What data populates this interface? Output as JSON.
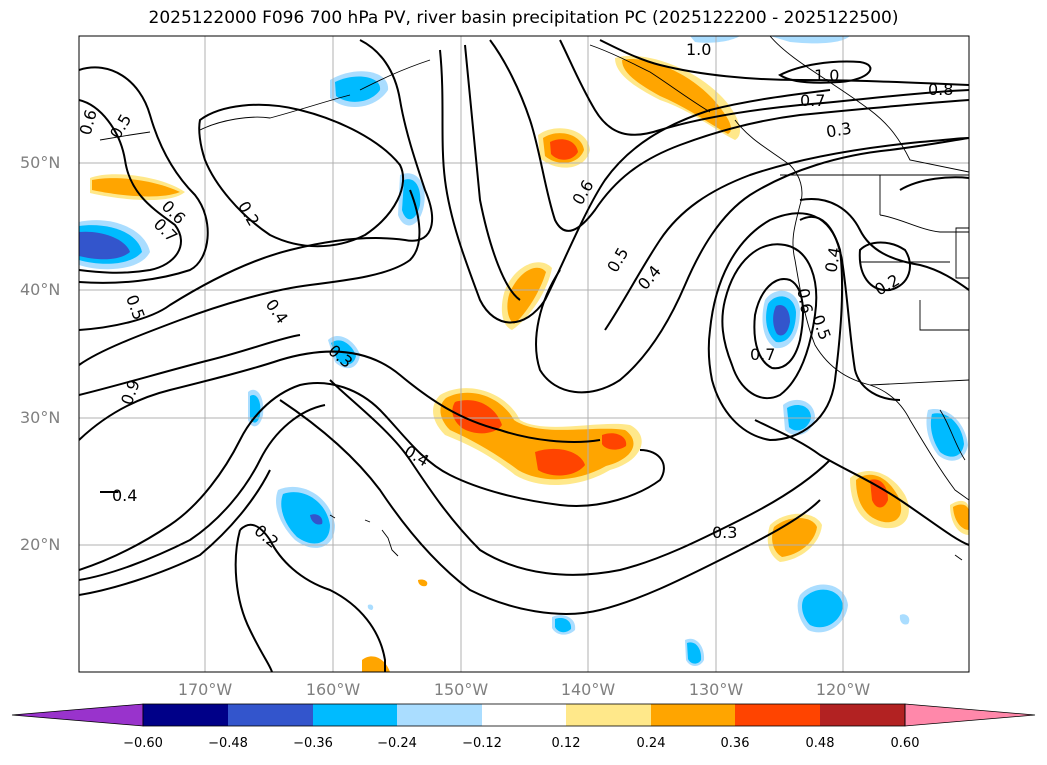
{
  "title": "2025122000 F096 700 hPa PV, river basin precipitation PC (2025122200 - 2025122500)",
  "map": {
    "lat_labels": [
      "50°N",
      "40°N",
      "30°N",
      "20°N"
    ],
    "lon_labels": [
      "170°W",
      "160°W",
      "150°W",
      "140°W",
      "130°W",
      "120°W"
    ],
    "contour_labels": [
      "0.6",
      "0.5",
      "0.6",
      "0.7",
      "0.2",
      "0.4",
      "0.5",
      "0.9",
      "0.3",
      "0.4",
      "0.4",
      "0.2",
      "0.6",
      "0.5",
      "0.4",
      "0.3",
      "1.0",
      "1.0",
      "0.8",
      "0.7",
      "0.3",
      "0.4",
      "0.2",
      "0.6",
      "0.5",
      "0.7"
    ]
  },
  "colorbar": {
    "tick_labels": [
      "−0.60",
      "−0.48",
      "−0.36",
      "−0.24",
      "−0.12",
      "0.12",
      "0.24",
      "0.36",
      "0.48",
      "0.60"
    ],
    "colors": [
      "#9933cc",
      "#000088",
      "#3355cc",
      "#00bbff",
      "#aaddff",
      "#ffffff",
      "#ffe88a",
      "#ffa500",
      "#ff4400",
      "#b22222",
      "#ff88aa"
    ]
  }
}
